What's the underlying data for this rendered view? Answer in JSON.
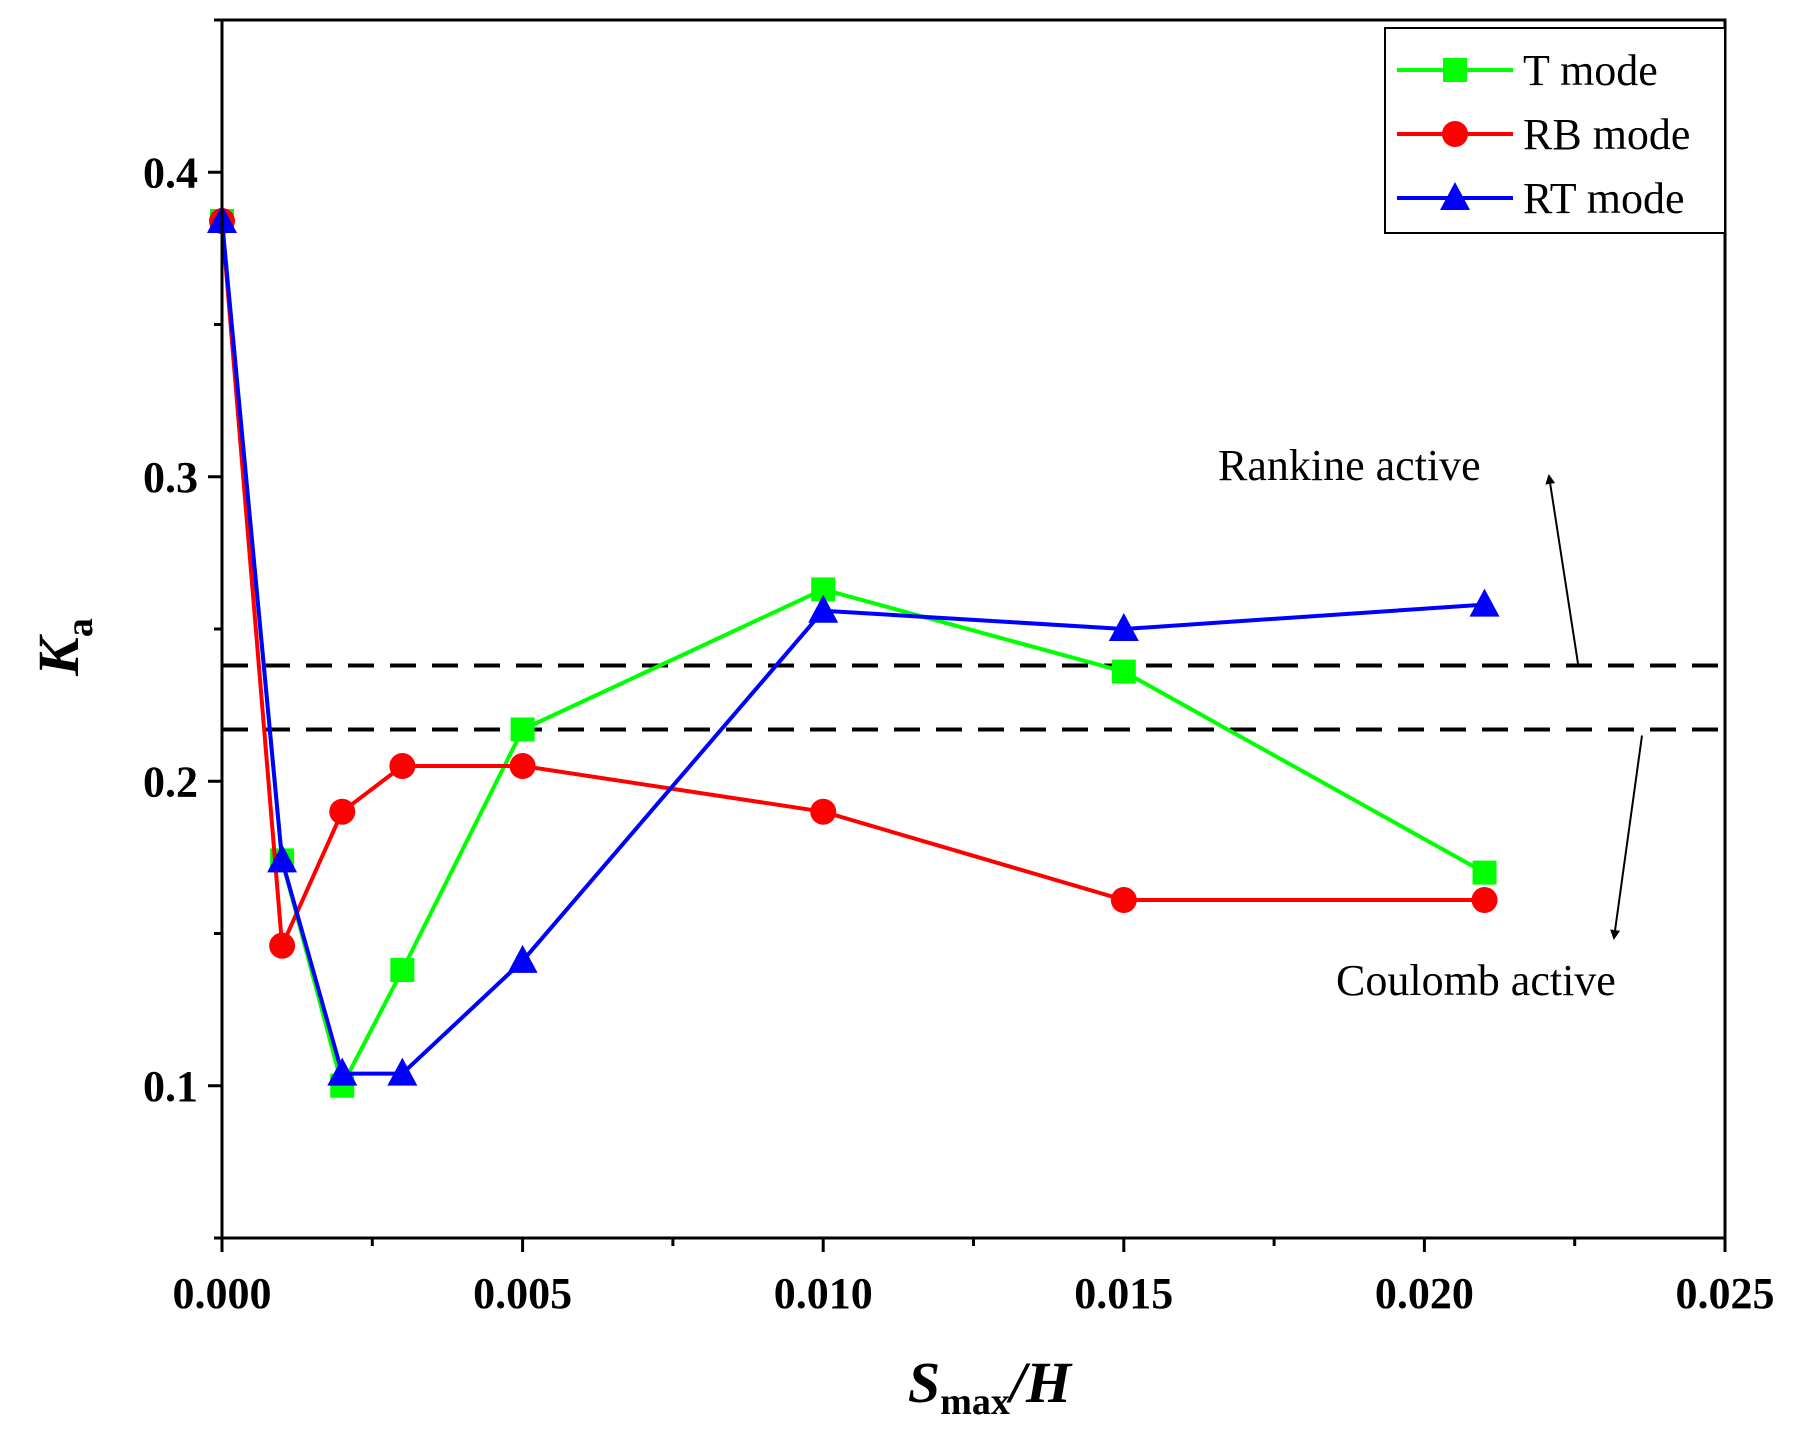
{
  "chart_data": {
    "type": "line",
    "title": "",
    "xlabel": {
      "main": "S",
      "sub": "max",
      "suffix": "/H"
    },
    "ylabel": {
      "main": "K",
      "sub": "a"
    },
    "xlim": [
      0,
      0.025
    ],
    "ylim": [
      0.05,
      0.45
    ],
    "x_ticks": [
      0,
      0.005,
      0.01,
      0.015,
      0.02,
      0.025
    ],
    "x_tick_labels": [
      "0.000",
      "0.005",
      "0.010",
      "0.015",
      "0.020",
      "0.025"
    ],
    "y_ticks": [
      0.1,
      0.2,
      0.3,
      0.4
    ],
    "y_tick_labels": [
      "0.1",
      "0.2",
      "0.3",
      "0.4"
    ],
    "legend_position": "top-right",
    "series": [
      {
        "name": "T mode",
        "color": "#00ff00",
        "marker": "square",
        "x": [
          0,
          0.001,
          0.002,
          0.003,
          0.005,
          0.01,
          0.015,
          0.021
        ],
        "y": [
          0.384,
          0.174,
          0.1,
          0.138,
          0.217,
          0.263,
          0.236,
          0.17
        ]
      },
      {
        "name": "RB mode",
        "color": "#ff0000",
        "marker": "circle",
        "x": [
          0,
          0.001,
          0.002,
          0.003,
          0.005,
          0.01,
          0.015,
          0.021
        ],
        "y": [
          0.384,
          0.146,
          0.19,
          0.205,
          0.205,
          0.19,
          0.161,
          0.161
        ]
      },
      {
        "name": "RT mode",
        "color": "#0000ff",
        "marker": "triangle",
        "x": [
          0,
          0.001,
          0.002,
          0.003,
          0.005,
          0.01,
          0.015,
          0.021
        ],
        "y": [
          0.384,
          0.174,
          0.104,
          0.104,
          0.141,
          0.256,
          0.25,
          0.258
        ]
      }
    ],
    "reference_lines": [
      {
        "name": "Rankine active",
        "y": 0.238,
        "style": "dashed",
        "color": "#000000"
      },
      {
        "name": "Coulomb active",
        "y": 0.217,
        "style": "dashed",
        "color": "#000000"
      }
    ],
    "annotations": [
      {
        "text": "Rankine active",
        "ref": 0
      },
      {
        "text": "Coulomb active",
        "ref": 1
      }
    ]
  }
}
